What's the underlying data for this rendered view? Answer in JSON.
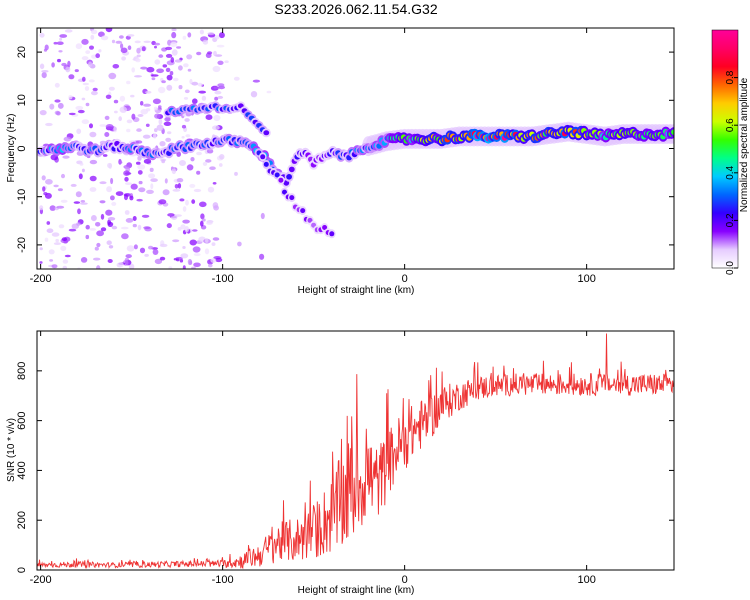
{
  "title": "S233.2026.062.11.54.G32",
  "chart_data": [
    {
      "type": "heatmap",
      "title": "S233.2026.062.11.54.G32",
      "xlabel": "Height of straight line (km)",
      "ylabel": "Frequency (Hz)",
      "xlim": [
        -202,
        148
      ],
      "ylim": [
        -25,
        25
      ],
      "xticks": [
        -200,
        -100,
        0,
        100
      ],
      "yticks": [
        -20,
        -10,
        0,
        10,
        20
      ],
      "colorbar": {
        "label": "Normalized spectral amplitude",
        "range": [
          0,
          1
        ],
        "ticks": [
          "0.0",
          "0.2",
          "0.4",
          "0.6",
          "0.8"
        ],
        "colors": [
          "#ffffff",
          "#e6ccff",
          "#8800ff",
          "#3300ff",
          "#0066ff",
          "#00ccff",
          "#00ff88",
          "#33ff00",
          "#ccff00",
          "#ffcc00",
          "#ff6600",
          "#ff0022",
          "#ff0066",
          "#ff0099"
        ]
      },
      "main_ridge": [
        {
          "x": -200,
          "y": -0.5,
          "a": 0.28
        },
        {
          "x": -190,
          "y": 0.0,
          "a": 0.38
        },
        {
          "x": -180,
          "y": 0.3,
          "a": 0.26
        },
        {
          "x": -170,
          "y": -0.5,
          "a": 0.34
        },
        {
          "x": -160,
          "y": 0.5,
          "a": 0.22
        },
        {
          "x": -150,
          "y": 0.0,
          "a": 0.32
        },
        {
          "x": -140,
          "y": -1.0,
          "a": 0.3
        },
        {
          "x": -130,
          "y": -0.5,
          "a": 0.26
        },
        {
          "x": -120,
          "y": 0.5,
          "a": 0.3
        },
        {
          "x": -110,
          "y": 1.0,
          "a": 0.28
        },
        {
          "x": -100,
          "y": 1.5,
          "a": 0.27
        },
        {
          "x": -90,
          "y": 1.5,
          "a": 0.34
        },
        {
          "x": -80,
          "y": -0.5,
          "a": 0.36
        },
        {
          "x": -70,
          "y": -5.0,
          "a": 0.32
        },
        {
          "x": -65,
          "y": -7.0,
          "a": 0.24
        },
        {
          "x": -60,
          "y": -2.0,
          "a": 0.22
        },
        {
          "x": -55,
          "y": -1.0,
          "a": 0.2
        },
        {
          "x": -50,
          "y": -3.0,
          "a": 0.18
        },
        {
          "x": -40,
          "y": -1.0,
          "a": 0.22
        },
        {
          "x": -30,
          "y": -1.5,
          "a": 0.3
        },
        {
          "x": -20,
          "y": 0.5,
          "a": 0.34
        },
        {
          "x": -10,
          "y": 1.5,
          "a": 0.42
        },
        {
          "x": 0,
          "y": 2.0,
          "a": 0.55
        },
        {
          "x": 10,
          "y": 2.0,
          "a": 0.62
        },
        {
          "x": 20,
          "y": 2.0,
          "a": 0.7
        },
        {
          "x": 30,
          "y": 2.5,
          "a": 0.8
        },
        {
          "x": 40,
          "y": 2.5,
          "a": 0.95
        },
        {
          "x": 50,
          "y": 2.5,
          "a": 0.98
        },
        {
          "x": 60,
          "y": 2.5,
          "a": 0.9
        },
        {
          "x": 70,
          "y": 2.5,
          "a": 0.75
        },
        {
          "x": 80,
          "y": 3.0,
          "a": 0.7
        },
        {
          "x": 90,
          "y": 3.5,
          "a": 0.85
        },
        {
          "x": 100,
          "y": 3.0,
          "a": 0.72
        },
        {
          "x": 110,
          "y": 2.5,
          "a": 0.55
        },
        {
          "x": 120,
          "y": 3.0,
          "a": 0.62
        },
        {
          "x": 130,
          "y": 3.0,
          "a": 0.58
        },
        {
          "x": 140,
          "y": 3.0,
          "a": 0.52
        },
        {
          "x": 148,
          "y": 3.0,
          "a": 0.48
        }
      ],
      "upper_branch": [
        {
          "x": -130,
          "y": 7.5,
          "a": 0.3
        },
        {
          "x": -120,
          "y": 8.0,
          "a": 0.32
        },
        {
          "x": -110,
          "y": 8.5,
          "a": 0.28
        },
        {
          "x": -100,
          "y": 8.5,
          "a": 0.3
        },
        {
          "x": -90,
          "y": 8.5,
          "a": 0.26
        },
        {
          "x": -80,
          "y": 5.0,
          "a": 0.26
        },
        {
          "x": -75,
          "y": 3.0,
          "a": 0.22
        }
      ],
      "lower_branch": [
        {
          "x": -80,
          "y": -1.0,
          "a": 0.26
        },
        {
          "x": -70,
          "y": -6.0,
          "a": 0.22
        },
        {
          "x": -60,
          "y": -12.0,
          "a": 0.18
        },
        {
          "x": -50,
          "y": -16.0,
          "a": 0.16
        },
        {
          "x": -40,
          "y": -17.5,
          "a": 0.2
        }
      ]
    },
    {
      "type": "line",
      "xlabel": "Height of straight line (km)",
      "ylabel": "SNR (10 * v/v)",
      "xlim": [
        -202,
        148
      ],
      "ylim": [
        0,
        960
      ],
      "xticks": [
        -200,
        -100,
        0,
        100
      ],
      "yticks": [
        0,
        200,
        400,
        600,
        800
      ],
      "color": "#ee3333",
      "series": [
        {
          "name": "SNR",
          "x": [
            -200,
            -180,
            -160,
            -140,
            -120,
            -100,
            -90,
            -80,
            -70,
            -60,
            -50,
            -40,
            -35,
            -30,
            -25,
            -20,
            -15,
            -10,
            -5,
            0,
            5,
            10,
            15,
            20,
            25,
            30,
            40,
            50,
            60,
            70,
            80,
            90,
            100,
            110,
            120,
            130,
            140,
            148
          ],
          "y": [
            20,
            22,
            20,
            22,
            24,
            25,
            35,
            60,
            110,
            120,
            150,
            220,
            260,
            320,
            350,
            380,
            350,
            410,
            480,
            520,
            560,
            590,
            620,
            660,
            680,
            700,
            730,
            740,
            745,
            745,
            745,
            745,
            745,
            745,
            745,
            745,
            745,
            745
          ],
          "noise": [
            10,
            12,
            10,
            12,
            12,
            14,
            30,
            50,
            80,
            90,
            110,
            160,
            200,
            220,
            200,
            180,
            150,
            140,
            130,
            120,
            110,
            100,
            90,
            80,
            70,
            60,
            50,
            45,
            45,
            45,
            45,
            45,
            45,
            45,
            45,
            45,
            45,
            45
          ],
          "max_value": 950,
          "max_at": 111
        }
      ]
    }
  ]
}
